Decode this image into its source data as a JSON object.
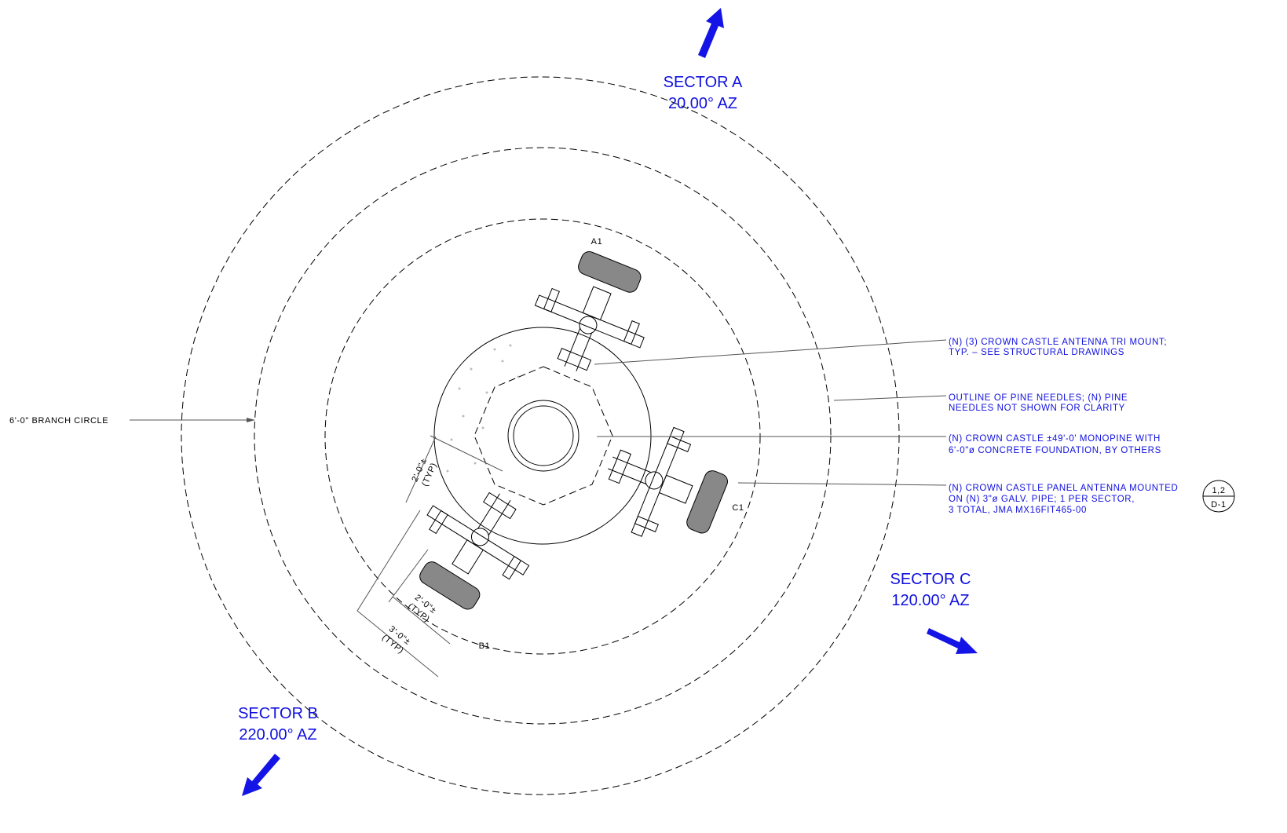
{
  "sectors": [
    {
      "name": "SECTOR A",
      "azimuth": "20.00° AZ"
    },
    {
      "name": "SECTOR B",
      "azimuth": "220.00° AZ"
    },
    {
      "name": "SECTOR C",
      "azimuth": "120.00° AZ"
    }
  ],
  "antennas": [
    "A1",
    "B1",
    "C1"
  ],
  "branch_circle": "6'-0\" BRANCH CIRCLE",
  "notes": [
    {
      "lines": [
        "(N) (3) CROWN CASTLE ANTENNA TRI MOUNT;",
        "TYP. – SEE STRUCTURAL DRAWINGS"
      ]
    },
    {
      "lines": [
        "OUTLINE OF PINE NEEDLES; (N) PINE",
        "NEEDLES NOT SHOWN FOR CLARITY"
      ]
    },
    {
      "lines": [
        "(N) CROWN CASTLE ±49'-0' MONOPINE WITH",
        "6'-0\"ø CONCRETE FOUNDATION, BY OTHERS"
      ]
    },
    {
      "lines": [
        "(N) CROWN CASTLE PANEL ANTENNA MOUNTED",
        "ON (N) 3\"ø GALV. PIPE; 1 PER SECTOR,",
        "3 TOTAL, JMA MX16FIT465-00"
      ]
    }
  ],
  "dimensions": [
    {
      "value": "2'-0\"±",
      "note": "(TYP)"
    },
    {
      "value": "2'-0\"±",
      "note": "(TYP)"
    },
    {
      "value": "3'-0\"±",
      "note": "(TYP)"
    }
  ],
  "detail_ref": {
    "top": "1,2",
    "bottom": "D-1"
  }
}
